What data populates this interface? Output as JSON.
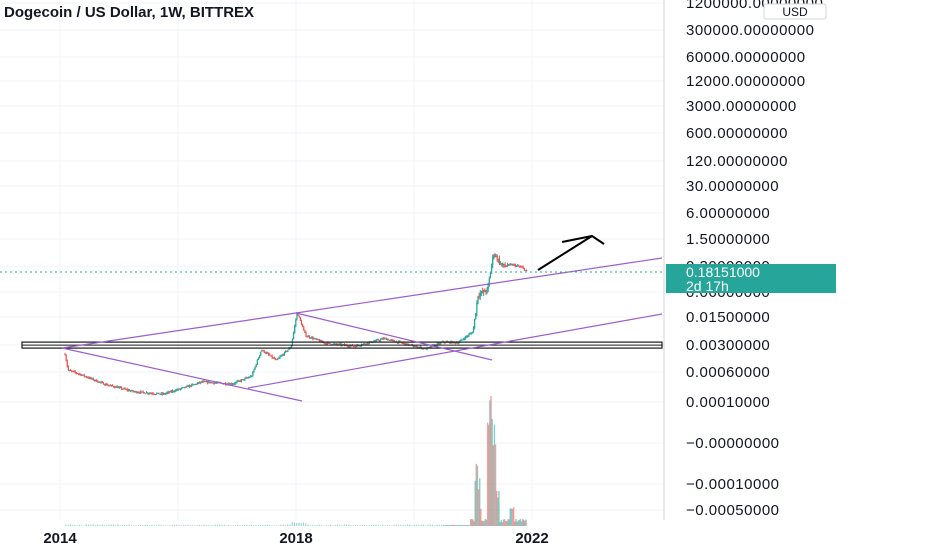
{
  "chart_data": {
    "type": "candlestick",
    "title": "Dogecoin / US Dollar, 1W, BITTREX",
    "currency_label": "USD",
    "y_scale": "log",
    "y_tick_labels": [
      "1200000.00000000",
      "300000.00000000",
      "60000.00000000",
      "12000.00000000",
      "3000.00000000",
      "600.00000000",
      "120.00000000",
      "30.00000000",
      "6.00000000",
      "1.50000000",
      "0.30000000",
      "0.06000000",
      "0.01500000",
      "0.00300000",
      "0.00060000",
      "0.00010000",
      "−0.00000000",
      "−0.00010000",
      "−0.00050000"
    ],
    "x_tick_labels": [
      "2014",
      "2018",
      "2022"
    ],
    "last_price": {
      "price": "0.18151000",
      "countdown": "2d 17h"
    },
    "price_path": [
      [
        "2014-02-01",
        0.0013
      ],
      [
        "2014-02-20",
        0.0005
      ],
      [
        "2014-05-01",
        0.0004
      ],
      [
        "2014-10-01",
        0.00022
      ],
      [
        "2015-04-01",
        0.00014
      ],
      [
        "2015-10-01",
        0.00012
      ],
      [
        "2016-06-01",
        0.00025
      ],
      [
        "2016-12-01",
        0.00022
      ],
      [
        "2017-04-01",
        0.00035
      ],
      [
        "2017-06-01",
        0.0017
      ],
      [
        "2017-09-01",
        0.0009
      ],
      [
        "2017-12-01",
        0.002
      ],
      [
        "2018-01-08",
        0.016
      ],
      [
        "2018-03-01",
        0.004
      ],
      [
        "2018-07-01",
        0.0025
      ],
      [
        "2019-01-01",
        0.0021
      ],
      [
        "2019-07-01",
        0.0033
      ],
      [
        "2020-01-01",
        0.0021
      ],
      [
        "2020-03-15",
        0.0018
      ],
      [
        "2020-07-01",
        0.0027
      ],
      [
        "2020-10-01",
        0.0026
      ],
      [
        "2021-01-01",
        0.005
      ],
      [
        "2021-02-01",
        0.045
      ],
      [
        "2021-04-01",
        0.06
      ],
      [
        "2021-05-08",
        0.55
      ],
      [
        "2021-07-01",
        0.25
      ],
      [
        "2021-09-01",
        0.27
      ],
      [
        "2021-11-01",
        0.23
      ],
      [
        "2021-12-01",
        0.18
      ]
    ],
    "volume_peaks": [
      [
        "2021-01-28",
        0.45
      ],
      [
        "2021-04-16",
        1.0
      ],
      [
        "2021-05-08",
        0.78
      ],
      [
        "2021-02-07",
        0.22
      ],
      [
        "2021-06-01",
        0.3
      ],
      [
        "2021-09-01",
        0.18
      ]
    ],
    "drawings": {
      "trendlines": [
        {
          "from": [
            "2014-02-01",
            0.0027
          ],
          "to": [
            "2017-10-01",
            8.5e-05
          ]
        },
        {
          "from": [
            "2014-02-01",
            0.0027
          ],
          "to": [
            "2018-01-08",
            0.016
          ]
        },
        {
          "from": [
            "2018-01-08",
            0.016
          ],
          "to": [
            "2020-12-20",
            0.0013
          ]
        },
        {
          "from": [
            "2017-06-01",
            0.0003
          ],
          "to": [
            "2023-12-31",
            0.016
          ]
        },
        {
          "from": [
            "2018-01-08",
            0.016
          ],
          "to": [
            "2023-12-31",
            0.45
          ]
        }
      ],
      "horizontal_band": {
        "top": 0.0032,
        "bottom": 0.0021
      },
      "arrow": {
        "from": [
          "2021-12-20",
          0.15
        ],
        "to": [
          "2022-06-20",
          1.4
        ]
      }
    },
    "colors": {
      "up": "#26a69a",
      "down": "#ef5350",
      "trendline": "#9c5ecf",
      "band": "#1a1a1a",
      "arrow": "#000000",
      "last_price": "#26a69a",
      "grid": "#f0f3fa"
    },
    "grid": true
  }
}
